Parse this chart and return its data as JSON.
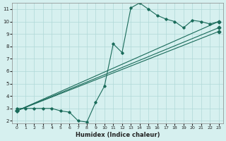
{
  "xlabel": "Humidex (Indice chaleur)",
  "ylabel": "",
  "background_color": "#d6f0ef",
  "grid_color": "#b0d8d8",
  "line_color": "#1a6b5a",
  "xlim": [
    -0.5,
    23.5
  ],
  "ylim": [
    1.8,
    11.5
  ],
  "xticks": [
    0,
    1,
    2,
    3,
    4,
    5,
    6,
    7,
    8,
    9,
    10,
    11,
    12,
    13,
    14,
    15,
    16,
    17,
    18,
    19,
    20,
    21,
    22,
    23
  ],
  "yticks": [
    2,
    3,
    4,
    5,
    6,
    7,
    8,
    9,
    10,
    11
  ],
  "series": [
    {
      "x": [
        0,
        1,
        2,
        3,
        4,
        5,
        6,
        7,
        8,
        9,
        10,
        11,
        12,
        13,
        14,
        15,
        16,
        17,
        18,
        19,
        20,
        21,
        22,
        23
      ],
      "y": [
        3,
        3,
        3,
        3,
        3,
        2.8,
        2.7,
        2.0,
        1.9,
        3.5,
        4.8,
        8.2,
        7.5,
        11.1,
        11.5,
        11.0,
        10.5,
        10.2,
        10.0,
        9.5,
        10.1,
        10.0,
        9.8,
        10.0
      ]
    },
    {
      "x": [
        0,
        23
      ],
      "y": [
        2.8,
        10.0
      ]
    },
    {
      "x": [
        0,
        23
      ],
      "y": [
        2.8,
        9.5
      ]
    },
    {
      "x": [
        0,
        23
      ],
      "y": [
        2.8,
        9.2
      ]
    }
  ]
}
